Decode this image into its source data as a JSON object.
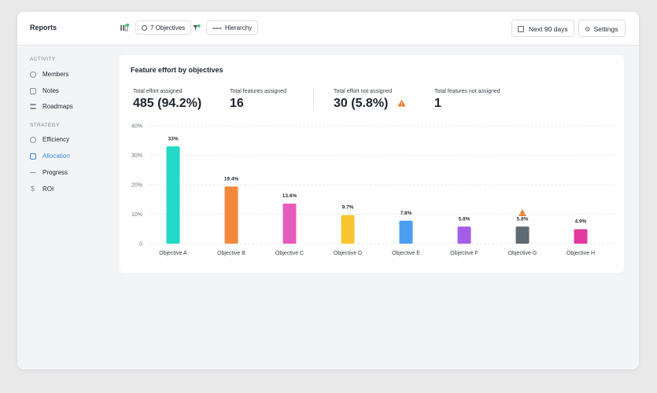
{
  "header": {
    "title": "Reports",
    "objectives_button": "7 Objectives",
    "hierarchy_button": "Hierarchy",
    "date_button": "Next 90 days",
    "settings_button": "Settings"
  },
  "sidebar": {
    "sections": [
      {
        "heading": "ACTIVITY",
        "items": [
          "Members",
          "Notes",
          "Roadmaps"
        ]
      },
      {
        "heading": "STRATEGY",
        "items": [
          "Efficiency",
          "Allocation",
          "Progress",
          "ROI"
        ]
      }
    ]
  },
  "stats": [
    {
      "label": "Total effort assigned",
      "value": "485 (94.2%)"
    },
    {
      "label": "Total features assigned",
      "value": "16"
    },
    {
      "label": "Total effort not assigned",
      "value": "30 (5.8%)"
    },
    {
      "label": "Total features not assigned",
      "value": "1"
    }
  ],
  "chart_data": {
    "type": "bar",
    "title": "Feature effort by objectives",
    "categories": [
      "Objective A",
      "Objective B",
      "Objective C",
      "Objective D",
      "Objective E",
      "Objective F",
      "Objective G",
      "Objective H"
    ],
    "values": [
      33,
      19.4,
      13.6,
      9.7,
      7.8,
      5.8,
      5.8,
      4.9
    ],
    "value_labels": [
      "33%",
      "19.4%",
      "13.6%",
      "9.7%",
      "7.8%",
      "5.8%",
      "5.8%",
      "4.9%"
    ],
    "colors": [
      "#22d8c7",
      "#f28a3c",
      "#e65cbe",
      "#f7c531",
      "#4a9ef0",
      "#a45ee8",
      "#5f6a72",
      "#e23a9f"
    ],
    "ylim": [
      0,
      40
    ],
    "yticks": [
      0,
      {
        "value": 10,
        "label": "10%"
      },
      {
        "value": 20,
        "label": "20%"
      },
      {
        "value": 30,
        "label": "30%"
      },
      {
        "value": 40,
        "label": "40%"
      }
    ],
    "grid": true
  }
}
